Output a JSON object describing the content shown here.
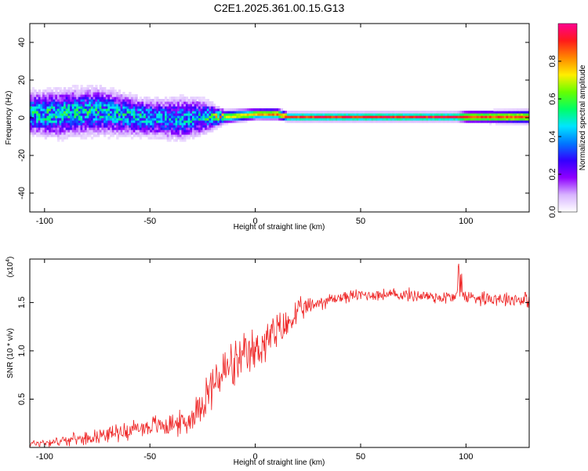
{
  "chart_data": [
    {
      "type": "heatmap",
      "title": "C2E1.2025.361.00.15.G13",
      "xlabel": "Height of straight line (km)",
      "ylabel": "Frequency (Hz)",
      "xlim": [
        -107,
        130
      ],
      "ylim": [
        -50,
        50
      ],
      "x_ticks": [
        -100,
        -50,
        0,
        50,
        100
      ],
      "y_ticks": [
        -40,
        -20,
        0,
        20,
        40
      ],
      "x_tick_labels": [
        "-100",
        "-50",
        "0",
        "50",
        "100"
      ],
      "y_tick_labels": [
        "-40",
        "-20",
        "0",
        "20",
        "40"
      ],
      "ridge": [
        {
          "x": -107,
          "f": 2,
          "spread": 10,
          "amp": 0.45
        },
        {
          "x": -95,
          "f": 1.5,
          "spread": 11,
          "amp": 0.45
        },
        {
          "x": -85,
          "f": 2.5,
          "spread": 11,
          "amp": 0.45
        },
        {
          "x": -75,
          "f": 3,
          "spread": 11,
          "amp": 0.42
        },
        {
          "x": -65,
          "f": 1.5,
          "spread": 10,
          "amp": 0.42
        },
        {
          "x": -55,
          "f": 0,
          "spread": 9,
          "amp": 0.42
        },
        {
          "x": -45,
          "f": -1,
          "spread": 9,
          "amp": 0.4
        },
        {
          "x": -35,
          "f": -1,
          "spread": 10,
          "amp": 0.4
        },
        {
          "x": -25,
          "f": 0,
          "spread": 8,
          "amp": 0.42
        },
        {
          "x": -15,
          "f": 0,
          "spread": 3,
          "amp": 0.7
        },
        {
          "x": 0,
          "f": 1.5,
          "spread": 2.5,
          "amp": 0.78
        },
        {
          "x": 10,
          "f": 1.5,
          "spread": 2.5,
          "amp": 0.85
        },
        {
          "x": 15,
          "f": 0,
          "spread": 2,
          "amp": 0.9
        },
        {
          "x": 50,
          "f": 0,
          "spread": 2,
          "amp": 0.92
        },
        {
          "x": 95,
          "f": 0,
          "spread": 2,
          "amp": 0.92
        },
        {
          "x": 100,
          "f": 0,
          "spread": 2.5,
          "amp": 0.9
        },
        {
          "x": 130,
          "f": 0,
          "spread": 3,
          "amp": 0.85
        }
      ],
      "colorbar": {
        "label": "Normalized spectral amplitude",
        "range": [
          0,
          1
        ],
        "ticks": [
          0,
          0.2,
          0.4,
          0.6,
          0.8
        ],
        "tick_labels": [
          "0.0",
          "0.2",
          "0.4",
          "0.6",
          "0.8"
        ],
        "colors": [
          "#ffffff",
          "#d8b4ff",
          "#8f00ff",
          "#3300ff",
          "#0077ff",
          "#00e5ff",
          "#00ff66",
          "#66ff00",
          "#ffee00",
          "#ff8800",
          "#ff1a1a",
          "#ff0090"
        ]
      }
    },
    {
      "type": "line",
      "xlabel": "Height of straight line (km)",
      "ylabel": "SNR (10 * v/v)",
      "scale_label": "(x10",
      "scale_exponent": "4",
      "scale_suffix": ")",
      "xlim": [
        -107,
        130
      ],
      "ylim": [
        0,
        1.95
      ],
      "x_ticks": [
        -100,
        -50,
        0,
        50,
        100
      ],
      "y_ticks": [
        0.5,
        1.0,
        1.5
      ],
      "x_tick_labels": [
        "-100",
        "-50",
        "0",
        "50",
        "100"
      ],
      "y_tick_labels": [
        "0.5",
        "1.0",
        "1.5"
      ],
      "color": "#ee2222",
      "trend_x": [
        -107,
        -95,
        -80,
        -70,
        -60,
        -50,
        -40,
        -32,
        -27,
        -22,
        -18,
        -14,
        -10,
        -5,
        0,
        5,
        10,
        15,
        20,
        30,
        40,
        50,
        60,
        70,
        80,
        90,
        100,
        110,
        120,
        130
      ],
      "trend_y": [
        0.04,
        0.06,
        0.1,
        0.14,
        0.18,
        0.22,
        0.24,
        0.26,
        0.42,
        0.58,
        0.7,
        0.8,
        0.84,
        0.92,
        1.0,
        1.1,
        1.18,
        1.26,
        1.4,
        1.5,
        1.55,
        1.58,
        1.58,
        1.58,
        1.57,
        1.55,
        1.56,
        1.55,
        1.54,
        1.53
      ],
      "noise_x": [
        -107,
        -80,
        -60,
        -40,
        -30,
        -25,
        -18,
        -12,
        -5,
        5,
        15,
        25,
        40,
        60,
        100,
        130
      ],
      "noise_amp": [
        0.05,
        0.08,
        0.12,
        0.15,
        0.17,
        0.25,
        0.35,
        0.32,
        0.3,
        0.3,
        0.22,
        0.12,
        0.08,
        0.08,
        0.1,
        0.1
      ]
    }
  ]
}
